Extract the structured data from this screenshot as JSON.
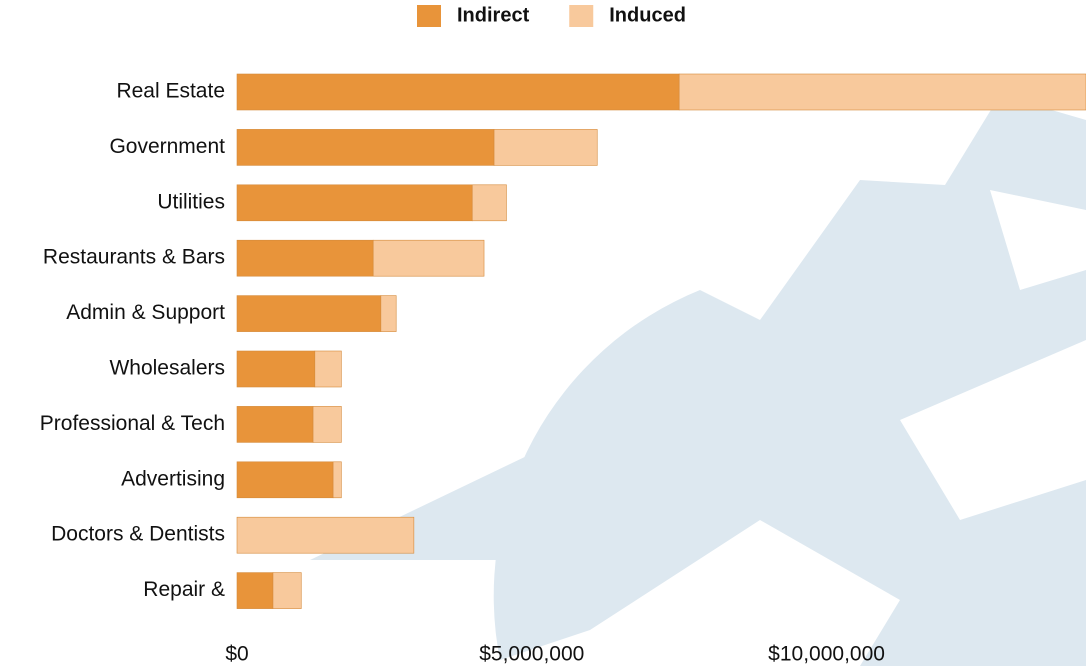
{
  "chart_data": {
    "type": "stacked-barh",
    "categories": [
      "Real Estate",
      "Government",
      "Utilities",
      "Restaurants & Bars",
      "Admin & Support",
      "Wholesalers",
      "Professional & Tech",
      "Advertising",
      "Doctors & Dentists",
      "Repair &"
    ],
    "series": [
      {
        "name": "Indirect",
        "color": "#e8943a",
        "values": [
          7500000,
          4360000,
          3990000,
          2310000,
          2440000,
          1320000,
          1290000,
          1630000,
          0,
          610000
        ]
      },
      {
        "name": "Induced",
        "color": "#f8c99c",
        "values": [
          6900000,
          1750000,
          580000,
          1880000,
          260000,
          450000,
          480000,
          140000,
          3000000,
          480000
        ]
      }
    ],
    "xlim": [
      0,
      14400000
    ],
    "xticks": [
      {
        "value": 0,
        "label": "$0"
      },
      {
        "value": 5000000,
        "label": "$5,000,000"
      },
      {
        "value": 10000000,
        "label": "$10,000,000"
      }
    ],
    "legend": "top"
  }
}
